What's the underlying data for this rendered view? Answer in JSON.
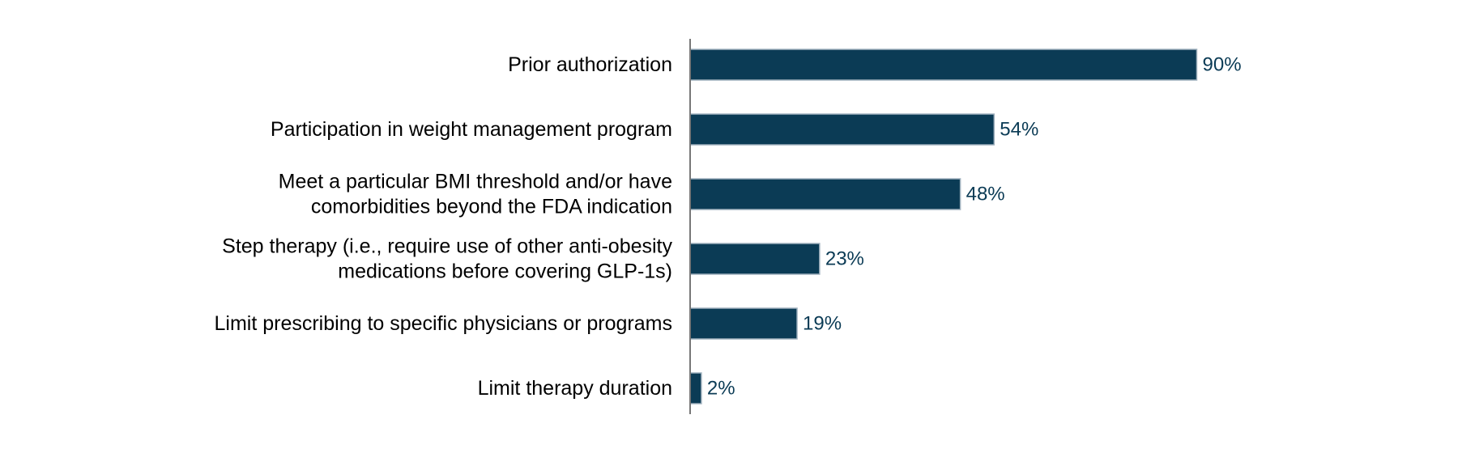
{
  "chart_data": {
    "type": "bar",
    "orientation": "horizontal",
    "title": "",
    "xlabel": "",
    "ylabel": "",
    "xlim": [
      0,
      100
    ],
    "grid": false,
    "legend": "none",
    "categories": [
      [
        "Prior authorization"
      ],
      [
        "Participation in weight management program"
      ],
      [
        "Meet a particular BMI threshold and/or have",
        "comorbidities beyond the FDA indication"
      ],
      [
        "Step therapy (i.e., require use of other anti-obesity",
        "medications before covering GLP-1s)"
      ],
      [
        "Limit prescribing to specific physicians or programs"
      ],
      [
        "Limit therapy duration"
      ]
    ],
    "values": [
      90,
      54,
      48,
      23,
      19,
      2
    ],
    "value_labels": [
      "90%",
      "54%",
      "48%",
      "23%",
      "19%",
      "2%"
    ],
    "colors": {
      "bar": "#0b3b55",
      "bar_edge": "#9fb0bd",
      "value_text": "#0b3b55",
      "axis": "#777777"
    }
  }
}
